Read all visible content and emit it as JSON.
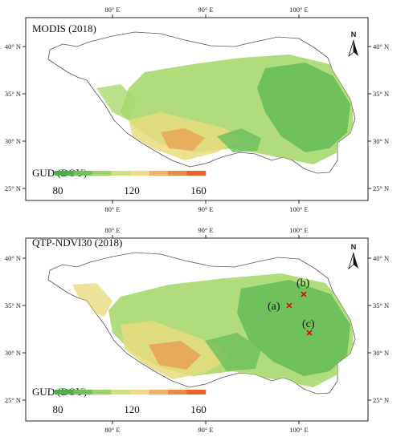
{
  "longitude_labels": [
    "80° E",
    "90° E",
    "100° E"
  ],
  "latitude_labels": [
    "40° N",
    "35° N",
    "30° N",
    "25° N"
  ],
  "north_arrow": {
    "letter": "N",
    "icon": "north-arrow-icon"
  },
  "legend": {
    "title": "GUD (DOY)",
    "tick_labels": [
      "80",
      "120",
      "160"
    ],
    "colors": [
      "#4daf4a",
      "#74c05a",
      "#9ed36a",
      "#c9e27a",
      "#f0dc82",
      "#f2b266",
      "#ee8a3c",
      "#e8632c"
    ]
  },
  "region_fill_colors": {
    "outline": "#555555",
    "green": "#6cbf5a",
    "light_green": "#a9d86e",
    "yellow": "#e7dc7e",
    "orange": "#e99a50"
  },
  "panels": [
    {
      "title": "MODIS (2018)",
      "markers": []
    },
    {
      "title": "QTP-NDVI30 (2018)",
      "markers": [
        {
          "label": "(a)",
          "color": "#e00000"
        },
        {
          "label": "(b)",
          "color": "#e00000"
        },
        {
          "label": "(c)",
          "color": "#e00000"
        }
      ]
    }
  ]
}
